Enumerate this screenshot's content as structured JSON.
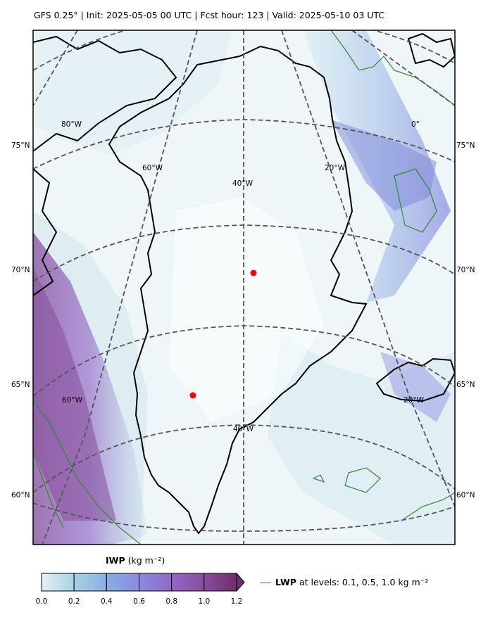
{
  "header": {
    "title": "GFS 0.25°  |  Init: 2025-05-05 00 UTC  |  Fcst hour: 123  |  Valid: 2025-05-10 03 UTC"
  },
  "map": {
    "projection": "polar stereographic",
    "region": "Greenland",
    "lat_labels_left": [
      "75°N",
      "70°N",
      "65°N",
      "60°N"
    ],
    "lat_labels_right": [
      "75°N",
      "70°N",
      "65°N",
      "60°N"
    ],
    "lon_labels_top": [
      "80°W",
      "60°W",
      "40°W",
      "20°W",
      "0°"
    ],
    "lon_labels_bottom": [
      "60°W",
      "40°W",
      "20°W"
    ],
    "markers": [
      {
        "name": "interior-station",
        "color": "#ff0000"
      },
      {
        "name": "southwest-station",
        "color": "#ff0000"
      }
    ],
    "fill_variable": "IWP",
    "contour_variable": "LWP",
    "coast_color": "#000000",
    "contour_color": "#2e8b2e"
  },
  "colorbar": {
    "variable": "IWP",
    "units": "(kg m⁻²)",
    "ticks": [
      "0.0",
      "0.2",
      "0.4",
      "0.6",
      "0.8",
      "1.0",
      "1.2"
    ],
    "colors": [
      "#e4f1f3",
      "#a8d2e6",
      "#89aee3",
      "#8a8be0",
      "#9468c8",
      "#874e9c",
      "#6d2e6d"
    ],
    "extend": "max"
  },
  "legend": {
    "variable": "LWP",
    "text": "at levels: 0.1, 0.5, 1.0  kg m⁻²"
  }
}
